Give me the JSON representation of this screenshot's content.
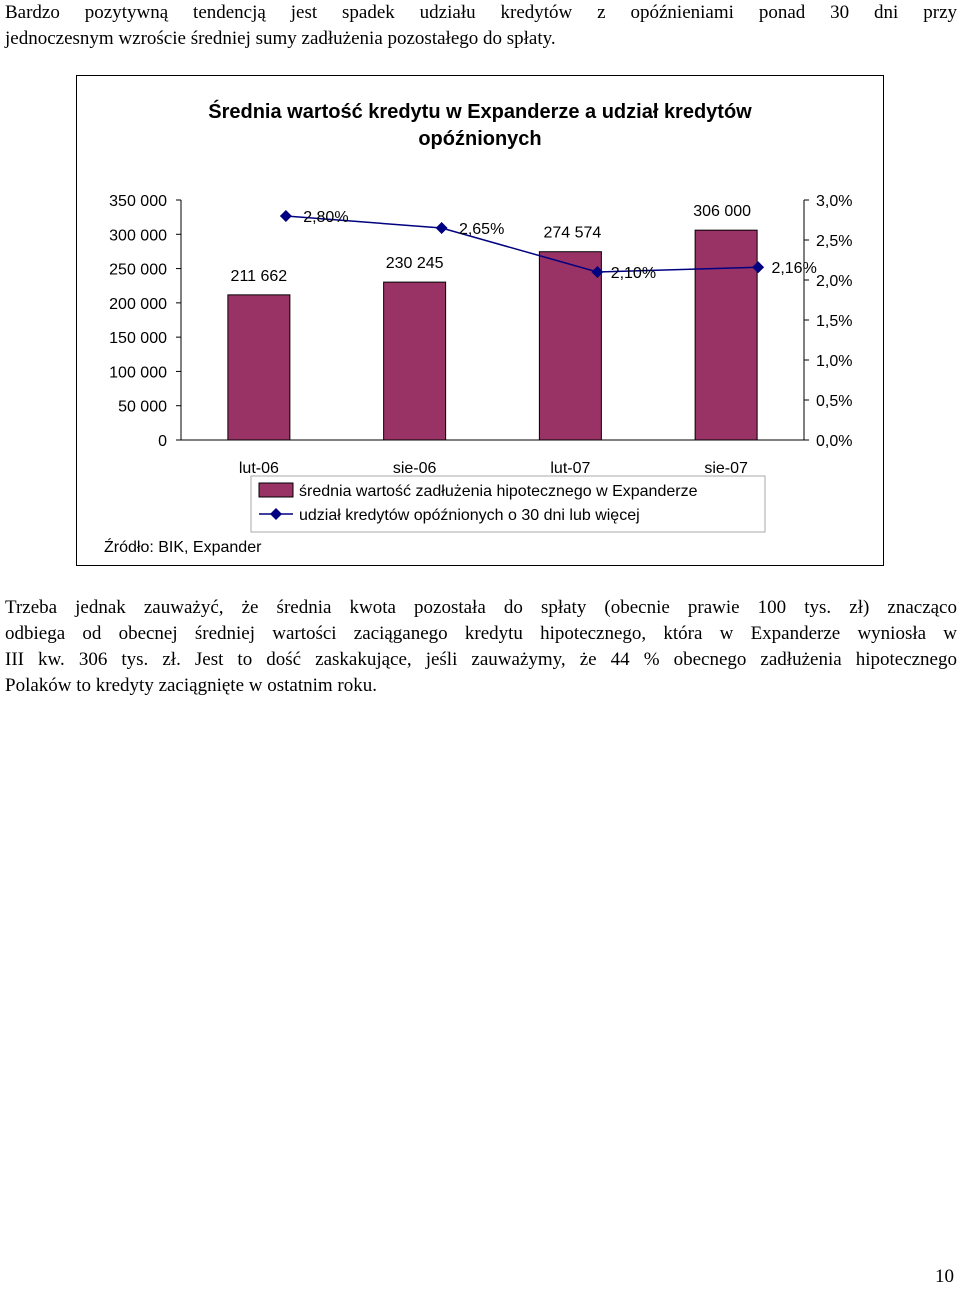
{
  "intro_paragraph": {
    "lines": [
      "Bardzo pozytywną tendencją jest spadek udziału kredytów z opóźnieniami ponad 30 dni przy",
      "jednoczesnym wzroście średniej sumy zadłużenia pozostałego do spłaty."
    ]
  },
  "chart_data": {
    "type": "bar",
    "title_lines": [
      "Średnia wartość kredytu w Expanderze a udział kredytów",
      "opóźnionych"
    ],
    "categories": [
      "lut-06",
      "sie-06",
      "lut-07",
      "sie-07"
    ],
    "series": [
      {
        "name": "średnia wartość zadłużenia hipotecznego w Expanderze",
        "type": "bar",
        "axis": "left",
        "values": [
          211662,
          230245,
          274574,
          306000
        ],
        "labels": [
          "211 662",
          "230 245",
          "274 574",
          "306 000"
        ],
        "color": "#993366"
      },
      {
        "name": "udział kredytów opóźnionych o 30 dni lub więcej",
        "type": "line",
        "axis": "right",
        "values": [
          2.8,
          2.65,
          2.1,
          2.16
        ],
        "labels": [
          "2,80%",
          "2,65%",
          "2,10%",
          "2,16%"
        ],
        "color": "#000080"
      }
    ],
    "y_left": {
      "range": [
        0,
        350000
      ],
      "ticks": [
        0,
        50000,
        100000,
        150000,
        200000,
        250000,
        300000,
        350000
      ],
      "tick_labels": [
        "0",
        "50 000",
        "100 000",
        "150 000",
        "200 000",
        "250 000",
        "300 000",
        "350 000"
      ]
    },
    "y_right": {
      "range": [
        0,
        3.0
      ],
      "ticks": [
        0,
        0.5,
        1.0,
        1.5,
        2.0,
        2.5,
        3.0
      ],
      "tick_labels": [
        "0,0%",
        "0,5%",
        "1,0%",
        "1,5%",
        "2,0%",
        "2,5%",
        "3,0%"
      ]
    },
    "grid": false,
    "legend_position": "bottom",
    "source": "Źródło: BIK, Expander"
  },
  "body_paragraph": {
    "lines": [
      "Trzeba jednak zauważyć, że średnia kwota pozostała do spłaty (obecnie prawie 100 tys. zł) znacząco",
      "odbiega od obecnej średniej wartości zaciąganego kredytu hipotecznego, która w Expanderze wyniosła w",
      "III kw. 306 tys. zł. Jest to dość zaskakujące, jeśli zauważymy, że 44 % obecnego zadłużenia hipotecznego",
      "Polaków to kredyty zaciągnięte w ostatnim roku."
    ]
  },
  "page_number": "10"
}
